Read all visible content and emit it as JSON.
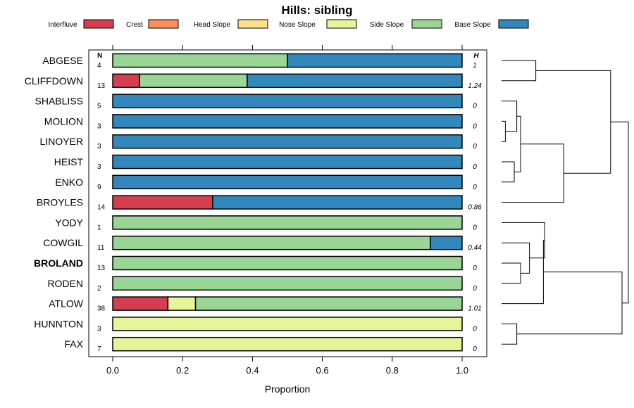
{
  "chart_data": {
    "type": "bar",
    "orientation": "horizontal",
    "stacked": true,
    "title": "Hills: sibling",
    "xlabel": "Proportion",
    "xlim": [
      0,
      1
    ],
    "xticks": [
      0.0,
      0.2,
      0.4,
      0.6,
      0.8,
      1.0
    ],
    "xtick_labels": [
      "0.0",
      "0.2",
      "0.4",
      "0.6",
      "0.8",
      "1.0"
    ],
    "n_header": "N",
    "h_header": "H",
    "legend": [
      {
        "name": "Interfluve",
        "color": "#d53e4f"
      },
      {
        "name": "Crest",
        "color": "#fc8d59"
      },
      {
        "name": "Head Slope",
        "color": "#fee08b"
      },
      {
        "name": "Nose Slope",
        "color": "#e6f598"
      },
      {
        "name": "Side Slope",
        "color": "#99d594"
      },
      {
        "name": "Base Slope",
        "color": "#3288bd"
      }
    ],
    "rows": [
      {
        "label": "ABGESE",
        "bold": false,
        "n": "4",
        "h": "1",
        "values": [
          0,
          0,
          0,
          0,
          0.5,
          0.5
        ]
      },
      {
        "label": "CLIFFDOWN",
        "bold": false,
        "n": "13",
        "h": "1.24",
        "values": [
          0.077,
          0,
          0,
          0,
          0.308,
          0.615
        ]
      },
      {
        "label": "SHABLISS",
        "bold": false,
        "n": "5",
        "h": "0",
        "values": [
          0,
          0,
          0,
          0,
          0,
          1
        ]
      },
      {
        "label": "MOLION",
        "bold": false,
        "n": "3",
        "h": "0",
        "values": [
          0,
          0,
          0,
          0,
          0,
          1
        ]
      },
      {
        "label": "LINOYER",
        "bold": false,
        "n": "3",
        "h": "0",
        "values": [
          0,
          0,
          0,
          0,
          0,
          1
        ]
      },
      {
        "label": "HEIST",
        "bold": false,
        "n": "3",
        "h": "0",
        "values": [
          0,
          0,
          0,
          0,
          0,
          1
        ]
      },
      {
        "label": "ENKO",
        "bold": false,
        "n": "9",
        "h": "0",
        "values": [
          0,
          0,
          0,
          0,
          0,
          1
        ]
      },
      {
        "label": "BROYLES",
        "bold": false,
        "n": "14",
        "h": "0.86",
        "values": [
          0.286,
          0,
          0,
          0,
          0,
          0.714
        ]
      },
      {
        "label": "YODY",
        "bold": false,
        "n": "1",
        "h": "0",
        "values": [
          0,
          0,
          0,
          0,
          1,
          0
        ]
      },
      {
        "label": "COWGIL",
        "bold": false,
        "n": "11",
        "h": "0.44",
        "values": [
          0,
          0,
          0,
          0,
          0.909,
          0.091
        ]
      },
      {
        "label": "BROLAND",
        "bold": true,
        "n": "13",
        "h": "0",
        "values": [
          0,
          0,
          0,
          0,
          1,
          0
        ]
      },
      {
        "label": "RODEN",
        "bold": false,
        "n": "2",
        "h": "0",
        "values": [
          0,
          0,
          0,
          0,
          1,
          0
        ]
      },
      {
        "label": "ATLOW",
        "bold": false,
        "n": "38",
        "h": "1.01",
        "values": [
          0.158,
          0,
          0,
          0.079,
          0.763,
          0
        ]
      },
      {
        "label": "HUNNTON",
        "bold": false,
        "n": "3",
        "h": "0",
        "values": [
          0,
          0,
          0,
          1,
          0,
          0
        ]
      },
      {
        "label": "FAX",
        "bold": false,
        "n": "7",
        "h": "0",
        "values": [
          0,
          0,
          0,
          1,
          0,
          0
        ]
      }
    ],
    "dendrogram": {
      "merges": [
        [
          0,
          1,
          0.27
        ],
        [
          3,
          4,
          0.03
        ],
        [
          5,
          6,
          0.1
        ],
        [
          2,
          -2,
          0.12
        ],
        [
          -4,
          -3,
          0.15
        ],
        [
          -5,
          7,
          0.49
        ],
        [
          -1,
          -6,
          0.86
        ],
        [
          10,
          11,
          0.15
        ],
        [
          -8,
          9,
          0.22
        ],
        [
          8,
          -9,
          0.34
        ],
        [
          -10,
          12,
          0.33
        ],
        [
          13,
          14,
          0.12
        ],
        [
          -11,
          -12,
          0.95
        ],
        [
          -7,
          -13,
          1.0
        ]
      ]
    }
  }
}
